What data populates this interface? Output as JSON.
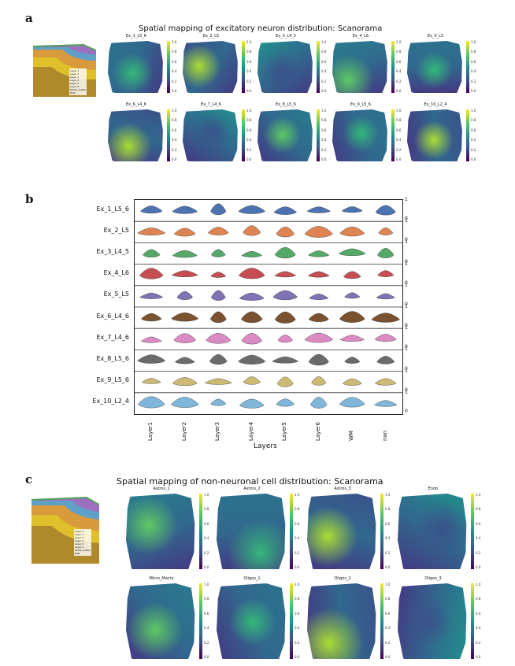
{
  "panel_a": {
    "letter": "a",
    "title": "Spatial mapping of excitatory neuron distribution: Scanorama",
    "maps": [
      "Ex_1_L5_6",
      "Ex_2_L5",
      "Ex_3_L4_5",
      "Ex_4_L6",
      "Ex_5_L5",
      "Ex_6_L4_6",
      "Ex_7_L4_6",
      "Ex_8_L5_6",
      "Ex_9_L5_6",
      "Ex_10_L2_4"
    ],
    "colorbar_ticks": [
      "1.0",
      "0.8",
      "0.6",
      "0.4",
      "0.2",
      "0.0"
    ]
  },
  "panel_b": {
    "letter": "b",
    "rows": [
      "Ex_1_L5_6",
      "Ex_2_L5",
      "Ex_3_L4_5",
      "Ex_4_L6",
      "Ex_5_L5",
      "Ex_6_L4_6",
      "Ex_7_L4_6",
      "Ex_8_L5_6",
      "Ex_9_L5_6",
      "Ex_10_L2_4"
    ],
    "row_colors": [
      "#4c72b0",
      "#dd8452",
      "#55a868",
      "#c44e52",
      "#8172b3",
      "#7a5230",
      "#da8bc3",
      "#6b6b6b",
      "#ccb974",
      "#7fb6d9"
    ],
    "layers": [
      "Layer1",
      "Layer2",
      "Layer3",
      "Layer4",
      "Layer5",
      "Layer6",
      "WM",
      "nan"
    ],
    "xlabel": "Layers",
    "right_ticks": [
      "1",
      "0"
    ]
  },
  "panel_c": {
    "letter": "c",
    "title": "Spatial mapping of non-neuronal cell distribution: Scanorama",
    "maps": [
      "Astros_1",
      "Astros_2",
      "Astros_3",
      "Endo",
      "Micro_Macro",
      "Oligos_1",
      "Oligos_2",
      "Oligos_3"
    ],
    "colorbar_ticks": [
      "1.0",
      "0.8",
      "0.6",
      "0.4",
      "0.2",
      "0.0"
    ]
  },
  "legend_entries": [
    "Layer 1",
    "Layer 2",
    "Layer 3",
    "Layer 4",
    "Layer 5",
    "Layer 6",
    "White_matter",
    "NaN"
  ],
  "colors": {
    "layer_palette": [
      "#4f9f5b",
      "#9c6fbf",
      "#5fa0c8",
      "#d89a3a",
      "#e0c02a",
      "#b08a2a",
      "#2f6f3a",
      "#c9b25a"
    ]
  }
}
